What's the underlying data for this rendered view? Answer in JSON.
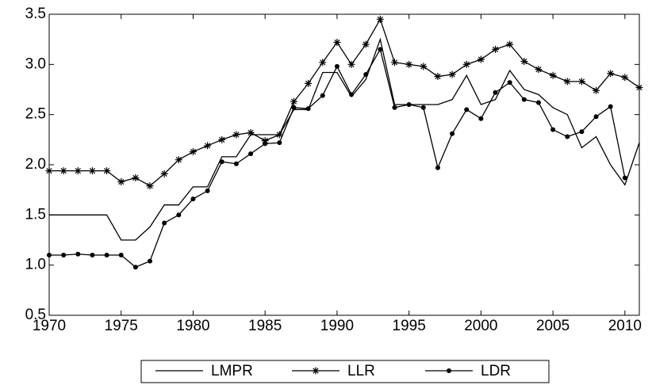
{
  "chart_data": {
    "type": "line",
    "x": [
      1970,
      1971,
      1972,
      1973,
      1974,
      1975,
      1976,
      1977,
      1978,
      1979,
      1980,
      1981,
      1982,
      1983,
      1984,
      1985,
      1986,
      1987,
      1988,
      1989,
      1990,
      1991,
      1992,
      1993,
      1994,
      1995,
      1996,
      1997,
      1998,
      1999,
      2000,
      2001,
      2002,
      2003,
      2004,
      2005,
      2006,
      2007,
      2008,
      2009,
      2010,
      2011
    ],
    "series": [
      {
        "name": "LMPR",
        "color": "#000000",
        "marker": "none",
        "values": [
          1.5,
          1.5,
          1.5,
          1.5,
          1.5,
          1.25,
          1.25,
          1.38,
          1.6,
          1.6,
          1.78,
          1.78,
          2.08,
          2.08,
          2.3,
          2.3,
          2.3,
          2.55,
          2.55,
          2.92,
          2.92,
          2.68,
          2.85,
          3.25,
          2.6,
          2.6,
          2.6,
          2.6,
          2.65,
          2.89,
          2.6,
          2.65,
          2.94,
          2.75,
          2.7,
          2.57,
          2.5,
          2.17,
          2.28,
          2.0,
          1.8,
          2.22
        ]
      },
      {
        "name": "LLR",
        "color": "#000000",
        "marker": "star",
        "values": [
          1.94,
          1.94,
          1.94,
          1.94,
          1.94,
          1.83,
          1.87,
          1.79,
          1.91,
          2.05,
          2.13,
          2.19,
          2.25,
          2.3,
          2.32,
          2.24,
          2.3,
          2.63,
          2.81,
          3.02,
          3.22,
          3.0,
          3.2,
          3.45,
          3.02,
          3.0,
          2.98,
          2.88,
          2.9,
          3.0,
          3.05,
          3.15,
          3.2,
          3.03,
          2.95,
          2.89,
          2.83,
          2.83,
          2.74,
          2.91,
          2.87,
          2.77
        ]
      },
      {
        "name": "LDR",
        "color": "#000000",
        "marker": "dot",
        "values": [
          1.1,
          1.1,
          1.11,
          1.1,
          1.1,
          1.1,
          0.98,
          1.04,
          1.42,
          1.5,
          1.66,
          1.74,
          2.03,
          2.01,
          2.11,
          2.21,
          2.22,
          2.57,
          2.56,
          2.69,
          2.98,
          2.7,
          2.9,
          3.15,
          2.57,
          2.6,
          2.57,
          1.97,
          2.31,
          2.55,
          2.46,
          2.72,
          2.82,
          2.65,
          2.62,
          2.35,
          2.28,
          2.33,
          2.48,
          2.58,
          1.87,
          null
        ]
      }
    ],
    "xlim": [
      1970,
      2011
    ],
    "xticks": [
      1970,
      1975,
      1980,
      1985,
      1990,
      1995,
      2000,
      2005,
      2010
    ],
    "ylim": [
      0.5,
      3.5
    ],
    "yticks": [
      0.5,
      {
        "value": 1.0,
        "label": "1.0"
      },
      1.5,
      {
        "value": 2.0,
        "label": "2.0"
      },
      2.5,
      {
        "value": 3.0,
        "label": "3.0"
      },
      3.5
    ],
    "legend": "bottom"
  }
}
